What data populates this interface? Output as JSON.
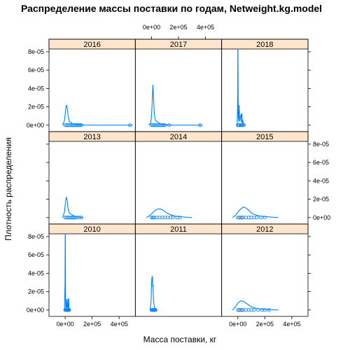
{
  "chart_data": {
    "type": "line",
    "title": "Распределение массы поставки по годам, Netweight.kg.model",
    "xlabel": "Масса поставки, кг",
    "ylabel": "Плотность распределения",
    "xlim": [
      -120000,
      520000
    ],
    "ylim": [
      -7e-06,
      8.3e-05
    ],
    "xticks": [
      0,
      200000,
      400000
    ],
    "xtick_labels": [
      "0e+00",
      "2e+05",
      "4e+05"
    ],
    "yticks": [
      0,
      2e-05,
      4e-05,
      6e-05,
      8e-05
    ],
    "ytick_labels": [
      "0e+00",
      "2e-05",
      "4e-05",
      "6e-05",
      "8e-05"
    ],
    "grid": false,
    "legend": "none",
    "color": "#0080ff",
    "panels": [
      {
        "label": "2016",
        "density_x": [
          -20000,
          -5000,
          0,
          5000,
          10000,
          15000,
          20000,
          30000,
          40000,
          50000,
          70000,
          100000,
          140000,
          200000,
          300000,
          400000,
          500000
        ],
        "density_y": [
          0,
          5e-06,
          1.2e-05,
          1.9e-05,
          2.2e-05,
          1.9e-05,
          1.2e-05,
          4e-06,
          3e-06,
          2e-06,
          1e-06,
          5e-07,
          2e-07,
          0,
          0,
          0,
          0
        ],
        "points": [
          0,
          10000,
          20000,
          30000,
          40000,
          50000,
          60000,
          70000,
          80000,
          90000,
          100000,
          110000,
          120000,
          480000
        ]
      },
      {
        "label": "2017",
        "density_x": [
          -20000,
          -5000,
          0,
          5000,
          10000,
          15000,
          20000,
          25000,
          30000,
          40000,
          50000,
          70000,
          100000,
          150000,
          200000,
          300000,
          380000
        ],
        "density_y": [
          0,
          3e-06,
          1e-05,
          2.5e-05,
          4.4e-05,
          3e-05,
          1.4e-05,
          8e-06,
          5e-06,
          4e-06,
          3e-06,
          1e-06,
          4e-07,
          1e-07,
          0,
          0,
          0
        ],
        "points": [
          0,
          10000,
          20000,
          30000,
          40000,
          50000,
          60000,
          70000,
          80000,
          90000,
          100000,
          130000,
          360000
        ]
      },
      {
        "label": "2018",
        "density_x": [
          -5000,
          -1000,
          0,
          1000,
          2000,
          3000,
          5000,
          8000,
          10000,
          12000,
          15000,
          20000,
          25000,
          28000,
          30000,
          33000,
          35000,
          40000,
          45000,
          50000
        ],
        "density_y": [
          0,
          3e-05,
          8.3e-05,
          8.3e-05,
          4e-05,
          1e-05,
          4e-06,
          1.2e-05,
          2.2e-05,
          1e-05,
          4e-06,
          1e-05,
          1.2e-05,
          3e-06,
          1.3e-05,
          2e-06,
          6e-06,
          3e-06,
          1e-06,
          0
        ],
        "points": [
          0,
          5000,
          10000,
          20000,
          30000,
          35000,
          45000
        ]
      },
      {
        "label": "2013",
        "density_x": [
          -20000,
          -5000,
          0,
          5000,
          10000,
          15000,
          20000,
          30000,
          40000,
          50000,
          70000,
          100000,
          130000
        ],
        "density_y": [
          0,
          6e-06,
          1.4e-05,
          2e-05,
          2.2e-05,
          1.8e-05,
          1.1e-05,
          5e-06,
          4e-06,
          3e-06,
          1.5e-06,
          5e-07,
          0
        ],
        "points": [
          0,
          10000,
          20000,
          30000,
          40000,
          50000,
          60000,
          70000,
          80000,
          100000,
          120000
        ]
      },
      {
        "label": "2014",
        "density_x": [
          -40000,
          -20000,
          0,
          20000,
          40000,
          60000,
          80000,
          100000,
          120000,
          150000,
          180000,
          210000,
          250000,
          300000
        ],
        "density_y": [
          0,
          1.5e-06,
          4e-06,
          7e-06,
          9e-06,
          9.5e-06,
          8.5e-06,
          6.5e-06,
          4.5e-06,
          2.5e-06,
          1.5e-06,
          1e-06,
          5e-07,
          0
        ],
        "points": [
          0,
          10000,
          20000,
          40000,
          60000,
          80000,
          100000,
          120000,
          140000,
          160000,
          190000,
          210000
        ]
      },
      {
        "label": "2015",
        "density_x": [
          -40000,
          -20000,
          0,
          20000,
          40000,
          60000,
          80000,
          100000,
          120000,
          150000,
          180000,
          210000,
          250000,
          300000
        ],
        "density_y": [
          0,
          2e-06,
          6e-06,
          9e-06,
          1.15e-05,
          1.05e-05,
          8e-06,
          5e-06,
          3.5e-06,
          2e-06,
          1.5e-06,
          1e-06,
          5e-07,
          0
        ],
        "points": [
          0,
          10000,
          20000,
          30000,
          40000,
          60000,
          80000,
          100000,
          120000,
          140000,
          170000,
          200000
        ]
      },
      {
        "label": "2010",
        "density_x": [
          -5000,
          -1000,
          0,
          1000,
          2000,
          3000,
          5000,
          7000,
          10000,
          12000,
          15000,
          17000,
          20000,
          22000,
          25000,
          28000,
          30000,
          35000
        ],
        "density_y": [
          0,
          3e-05,
          8.3e-05,
          8.3e-05,
          4e-05,
          1.2e-05,
          2e-06,
          4e-06,
          1.2e-05,
          2e-06,
          8e-06,
          3e-06,
          1.2e-05,
          2e-06,
          1.3e-05,
          3e-06,
          1e-06,
          0
        ],
        "points": [
          0,
          5000,
          10000,
          15000,
          20000,
          25000,
          30000
        ]
      },
      {
        "label": "2011",
        "density_x": [
          -10000,
          -3000,
          0,
          3000,
          5000,
          7000,
          9000,
          11000,
          13000,
          15000,
          17000,
          20000,
          25000,
          30000,
          40000
        ],
        "density_y": [
          0,
          1e-05,
          2.8e-05,
          3.6e-05,
          3e-05,
          3.7e-05,
          2.5e-05,
          2.8e-05,
          1.9e-05,
          1.2e-05,
          8e-06,
          4e-06,
          2e-06,
          1e-06,
          0
        ],
        "points": [
          0,
          5000,
          10000,
          15000,
          20000,
          25000,
          30000
        ]
      },
      {
        "label": "2012",
        "density_x": [
          -40000,
          -20000,
          0,
          20000,
          40000,
          60000,
          80000,
          100000,
          120000,
          150000,
          180000,
          220000,
          260000,
          300000
        ],
        "density_y": [
          0,
          3e-06,
          7.5e-06,
          1e-05,
          9.5e-06,
          7.5e-06,
          5.5e-06,
          3.5e-06,
          2.5e-06,
          1.5e-06,
          1e-06,
          5e-07,
          2e-07,
          0
        ],
        "points": [
          0,
          10000,
          20000,
          30000,
          40000,
          60000,
          80000,
          100000,
          120000,
          150000,
          180000,
          200000,
          230000
        ]
      }
    ]
  }
}
